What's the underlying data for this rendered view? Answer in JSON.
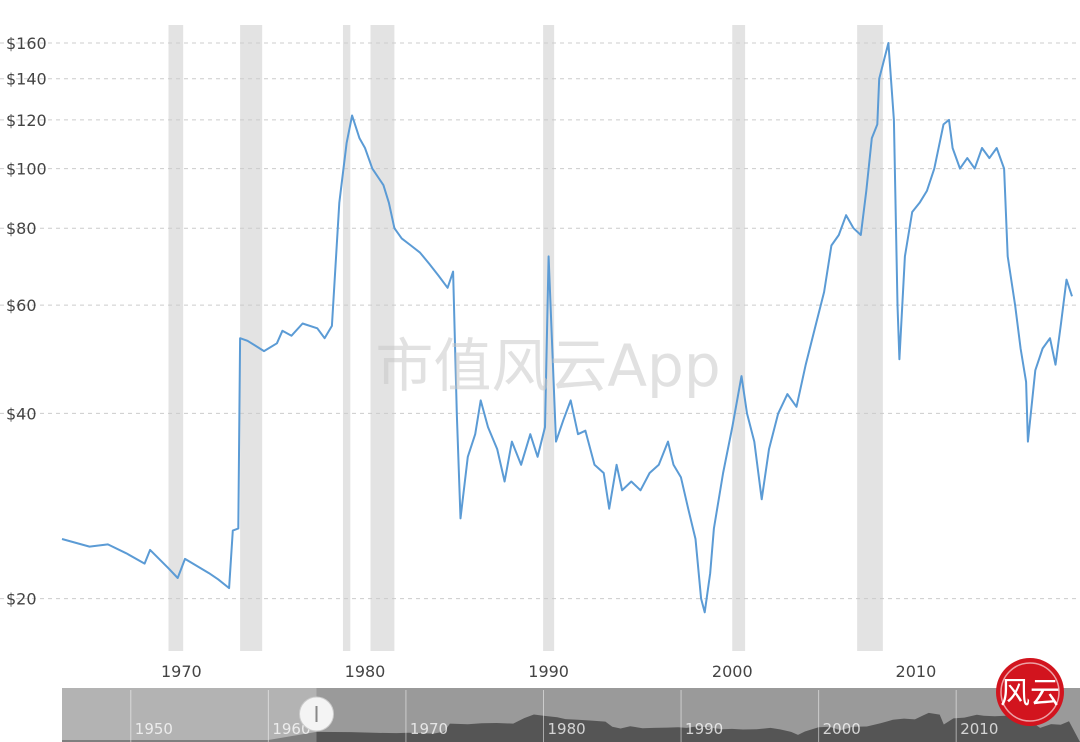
{
  "chart_data": {
    "type": "line",
    "title": "",
    "xlabel": "",
    "ylabel": "",
    "scale": "log",
    "grid": true,
    "legend": "none",
    "xlim": [
      1963.5,
      2018.5
    ],
    "ylim": [
      16.5,
      168
    ],
    "x_ticks": [
      {
        "value": 1970,
        "label": "1970"
      },
      {
        "value": 1980,
        "label": "1980"
      },
      {
        "value": 1990,
        "label": "1990"
      },
      {
        "value": 2000,
        "label": "2000"
      },
      {
        "value": 2010,
        "label": "2010"
      }
    ],
    "y_ticks": [
      {
        "value": 20,
        "label": "$20"
      },
      {
        "value": 40,
        "label": "$40"
      },
      {
        "value": 60,
        "label": "$60"
      },
      {
        "value": 80,
        "label": "$80"
      },
      {
        "value": 100,
        "label": "$100"
      },
      {
        "value": 120,
        "label": "$120"
      },
      {
        "value": 140,
        "label": "$140"
      },
      {
        "value": 160,
        "label": "$160"
      }
    ],
    "recession_bands": [
      [
        1969.3,
        1970.1
      ],
      [
        1973.2,
        1974.4
      ],
      [
        1978.8,
        1979.2
      ],
      [
        1980.3,
        1981.6
      ],
      [
        1989.7,
        1990.3
      ],
      [
        2000.0,
        2000.7
      ],
      [
        2006.8,
        2008.2
      ]
    ],
    "series": [
      {
        "name": "",
        "color": "#5b9bd5",
        "points": [
          [
            1963.5,
            25.0
          ],
          [
            1965.0,
            24.3
          ],
          [
            1966.0,
            24.5
          ],
          [
            1967.0,
            23.7
          ],
          [
            1968.0,
            22.8
          ],
          [
            1968.3,
            24.0
          ],
          [
            1969.3,
            22.4
          ],
          [
            1969.8,
            21.6
          ],
          [
            1970.2,
            23.2
          ],
          [
            1971.5,
            22.0
          ],
          [
            1972.0,
            21.5
          ],
          [
            1972.6,
            20.8
          ],
          [
            1972.8,
            25.8
          ],
          [
            1973.1,
            26.0
          ],
          [
            1973.2,
            53.0
          ],
          [
            1973.6,
            52.5
          ],
          [
            1974.5,
            50.5
          ],
          [
            1975.2,
            52.0
          ],
          [
            1975.5,
            54.5
          ],
          [
            1976.0,
            53.5
          ],
          [
            1976.6,
            56.0
          ],
          [
            1977.4,
            55.0
          ],
          [
            1977.8,
            53.0
          ],
          [
            1978.2,
            55.5
          ],
          [
            1978.6,
            88.0
          ],
          [
            1979.0,
            110.0
          ],
          [
            1979.3,
            122.0
          ],
          [
            1979.7,
            112.0
          ],
          [
            1980.0,
            108.0
          ],
          [
            1980.4,
            100.0
          ],
          [
            1981.0,
            94.0
          ],
          [
            1981.3,
            88.0
          ],
          [
            1981.6,
            80.0
          ],
          [
            1982.0,
            77.0
          ],
          [
            1982.5,
            75.0
          ],
          [
            1983.0,
            73.0
          ],
          [
            1983.5,
            70.0
          ],
          [
            1984.0,
            67.0
          ],
          [
            1984.5,
            64.0
          ],
          [
            1984.8,
            68.0
          ],
          [
            1985.0,
            40.0
          ],
          [
            1985.2,
            27.0
          ],
          [
            1985.6,
            34.0
          ],
          [
            1986.0,
            37.0
          ],
          [
            1986.3,
            42.0
          ],
          [
            1986.7,
            38.0
          ],
          [
            1987.2,
            35.0
          ],
          [
            1987.6,
            31.0
          ],
          [
            1988.0,
            36.0
          ],
          [
            1988.5,
            33.0
          ],
          [
            1989.0,
            37.0
          ],
          [
            1989.4,
            34.0
          ],
          [
            1989.8,
            38.0
          ],
          [
            1990.0,
            72.0
          ],
          [
            1990.4,
            36.0
          ],
          [
            1990.8,
            39.0
          ],
          [
            1991.2,
            42.0
          ],
          [
            1991.6,
            37.0
          ],
          [
            1992.0,
            37.5
          ],
          [
            1992.5,
            33.0
          ],
          [
            1993.0,
            32.0
          ],
          [
            1993.3,
            28.0
          ],
          [
            1993.7,
            33.0
          ],
          [
            1994.0,
            30.0
          ],
          [
            1994.5,
            31.0
          ],
          [
            1995.0,
            30.0
          ],
          [
            1995.5,
            32.0
          ],
          [
            1996.0,
            33.0
          ],
          [
            1996.5,
            36.0
          ],
          [
            1996.8,
            33.0
          ],
          [
            1997.2,
            31.5
          ],
          [
            1997.6,
            28.0
          ],
          [
            1998.0,
            25.0
          ],
          [
            1998.3,
            20.0
          ],
          [
            1998.5,
            19.0
          ],
          [
            1998.8,
            22.0
          ],
          [
            1999.0,
            26.0
          ],
          [
            1999.5,
            32.0
          ],
          [
            2000.0,
            38.0
          ],
          [
            2000.5,
            46.0
          ],
          [
            2000.8,
            40.0
          ],
          [
            2001.2,
            36.0
          ],
          [
            2001.6,
            29.0
          ],
          [
            2002.0,
            35.0
          ],
          [
            2002.5,
            40.0
          ],
          [
            2003.0,
            43.0
          ],
          [
            2003.5,
            41.0
          ],
          [
            2004.0,
            48.0
          ],
          [
            2004.5,
            55.0
          ],
          [
            2005.0,
            63.0
          ],
          [
            2005.4,
            75.0
          ],
          [
            2005.8,
            78.0
          ],
          [
            2006.2,
            84.0
          ],
          [
            2006.6,
            80.0
          ],
          [
            2007.0,
            78.0
          ],
          [
            2007.3,
            92.0
          ],
          [
            2007.6,
            112.0
          ],
          [
            2007.9,
            118.0
          ],
          [
            2008.0,
            140.0
          ],
          [
            2008.5,
            160.0
          ],
          [
            2008.8,
            120.0
          ],
          [
            2009.0,
            60.0
          ],
          [
            2009.1,
            49.0
          ],
          [
            2009.4,
            72.0
          ],
          [
            2009.8,
            85.0
          ],
          [
            2010.2,
            88.0
          ],
          [
            2010.6,
            92.0
          ],
          [
            2011.0,
            100.0
          ],
          [
            2011.5,
            118.0
          ],
          [
            2011.8,
            120.0
          ],
          [
            2012.0,
            108.0
          ],
          [
            2012.4,
            100.0
          ],
          [
            2012.8,
            104.0
          ],
          [
            2013.2,
            100.0
          ],
          [
            2013.6,
            108.0
          ],
          [
            2014.0,
            104.0
          ],
          [
            2014.4,
            108.0
          ],
          [
            2014.8,
            100.0
          ],
          [
            2015.0,
            72.0
          ],
          [
            2015.4,
            60.0
          ],
          [
            2015.7,
            51.0
          ],
          [
            2016.0,
            45.0
          ],
          [
            2016.1,
            36.0
          ],
          [
            2016.5,
            47.0
          ],
          [
            2016.9,
            51.0
          ],
          [
            2017.3,
            53.0
          ],
          [
            2017.6,
            48.0
          ],
          [
            2017.9,
            56.0
          ],
          [
            2018.2,
            66.0
          ],
          [
            2018.5,
            62.0
          ]
        ]
      }
    ]
  },
  "navigator": {
    "labels": [
      {
        "value": 1950,
        "label": "1950"
      },
      {
        "value": 1960,
        "label": "1960"
      },
      {
        "value": 1970,
        "label": "1970"
      },
      {
        "value": 1980,
        "label": "1980"
      },
      {
        "value": 1990,
        "label": "1990"
      },
      {
        "value": 2000,
        "label": "2000"
      },
      {
        "value": 2010,
        "label": "2010"
      }
    ],
    "range_start": 1963.5,
    "range_end": 2018.5
  },
  "watermark": "市值风云App",
  "seal": {
    "text": "风云",
    "color": "#d2141e"
  }
}
